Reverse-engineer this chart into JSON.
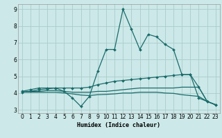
{
  "xlabel": "Humidex (Indice chaleur)",
  "bg_color": "#cce8e8",
  "grid_color": "#aacccc",
  "line_color": "#1a6b6b",
  "xlim": [
    -0.5,
    23.5
  ],
  "ylim": [
    2.8,
    9.3
  ],
  "yticks": [
    3,
    4,
    5,
    6,
    7,
    8,
    9
  ],
  "xticks": [
    0,
    1,
    2,
    3,
    4,
    5,
    6,
    7,
    8,
    9,
    10,
    11,
    12,
    13,
    14,
    15,
    16,
    17,
    18,
    19,
    20,
    21,
    22,
    23
  ],
  "series": [
    {
      "x": [
        0,
        1,
        2,
        3,
        4,
        5,
        6,
        7,
        8,
        9,
        10,
        11,
        12,
        13,
        14,
        15,
        16,
        17,
        18,
        19,
        20,
        21,
        22,
        23
      ],
      "y": [
        4.1,
        4.2,
        4.3,
        4.3,
        4.3,
        4.1,
        3.7,
        3.2,
        3.8,
        5.3,
        6.6,
        6.6,
        9.0,
        7.8,
        6.6,
        7.5,
        7.35,
        6.9,
        6.6,
        5.1,
        5.1,
        3.7,
        3.5,
        3.3
      ],
      "marker": true
    },
    {
      "x": [
        0,
        1,
        2,
        3,
        4,
        5,
        6,
        7,
        8,
        9,
        10,
        11,
        12,
        13,
        14,
        15,
        16,
        17,
        18,
        19,
        20,
        21,
        22,
        23
      ],
      "y": [
        4.05,
        4.1,
        4.2,
        4.25,
        4.3,
        4.3,
        4.3,
        4.3,
        4.35,
        4.5,
        4.6,
        4.7,
        4.75,
        4.8,
        4.85,
        4.9,
        4.95,
        5.0,
        5.05,
        5.1,
        5.1,
        4.35,
        3.5,
        3.3
      ],
      "marker": true
    },
    {
      "x": [
        0,
        1,
        2,
        3,
        4,
        5,
        6,
        7,
        8,
        9,
        10,
        11,
        12,
        13,
        14,
        15,
        16,
        17,
        18,
        19,
        20,
        21,
        22,
        23
      ],
      "y": [
        4.05,
        4.1,
        4.1,
        4.15,
        4.15,
        4.1,
        4.05,
        4.05,
        4.05,
        4.1,
        4.1,
        4.15,
        4.2,
        4.25,
        4.3,
        4.3,
        4.3,
        4.3,
        4.3,
        4.35,
        4.35,
        4.35,
        3.5,
        3.3
      ],
      "marker": false
    },
    {
      "x": [
        0,
        1,
        2,
        3,
        4,
        5,
        6,
        7,
        8,
        9,
        10,
        11,
        12,
        13,
        14,
        15,
        16,
        17,
        18,
        19,
        20,
        21,
        22,
        23
      ],
      "y": [
        4.05,
        4.05,
        4.05,
        4.05,
        4.05,
        4.0,
        3.95,
        3.88,
        3.85,
        3.9,
        3.92,
        3.95,
        4.0,
        4.0,
        4.05,
        4.05,
        4.05,
        4.0,
        3.98,
        3.9,
        3.85,
        3.8,
        3.5,
        3.3
      ],
      "marker": false
    }
  ]
}
